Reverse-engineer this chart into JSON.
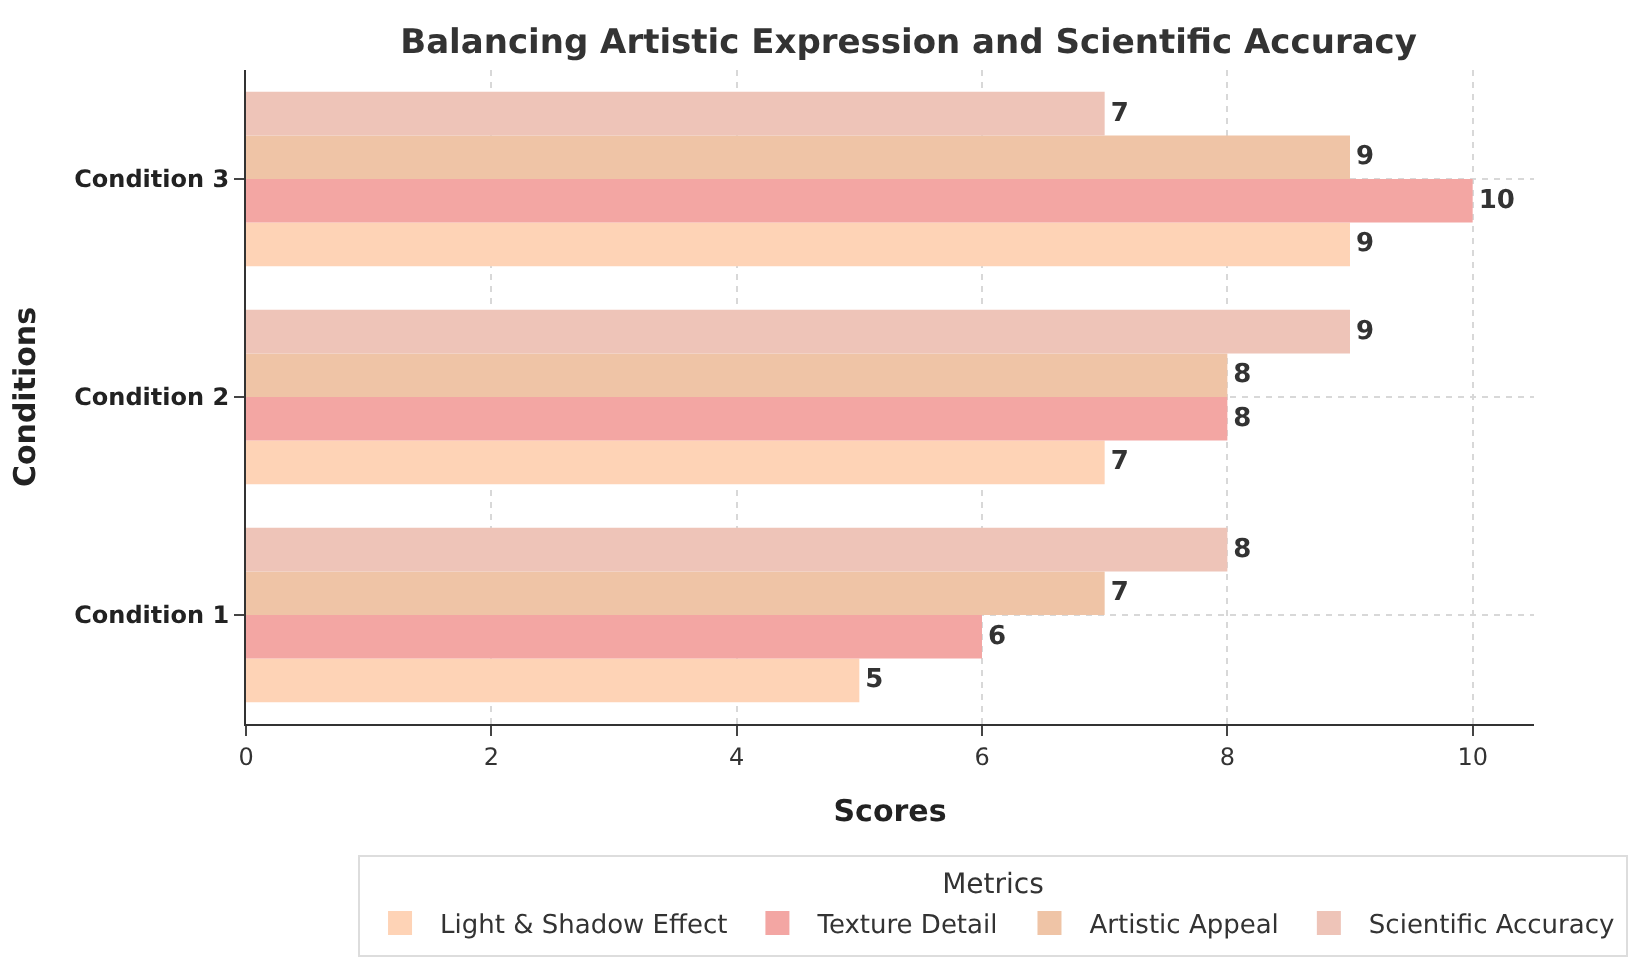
{
  "chart_data": {
    "type": "bar",
    "orientation": "horizontal",
    "title": "Balancing Artistic Expression and Scientific Accuracy",
    "xlabel": "Scores",
    "ylabel": "Conditions",
    "legend_title": "Metrics",
    "categories": [
      "Condition 3",
      "Condition 2",
      "Condition 1"
    ],
    "series": [
      {
        "name": "Scientific Accuracy",
        "color": "#eec4b8",
        "values": [
          7,
          9,
          8
        ]
      },
      {
        "name": "Artistic Appeal",
        "color": "#efc4a6",
        "values": [
          9,
          8,
          7
        ]
      },
      {
        "name": "Texture Detail",
        "color": "#f3a6a3",
        "values": [
          10,
          8,
          6
        ]
      },
      {
        "name": "Light & Shadow Effect",
        "color": "#fed3b6",
        "values": [
          9,
          7,
          5
        ]
      }
    ],
    "xlim": [
      0,
      10.5
    ],
    "xticks": [
      0,
      2,
      4,
      6,
      8,
      10
    ],
    "grid": true,
    "legend": "bottom",
    "data_labels": true
  }
}
